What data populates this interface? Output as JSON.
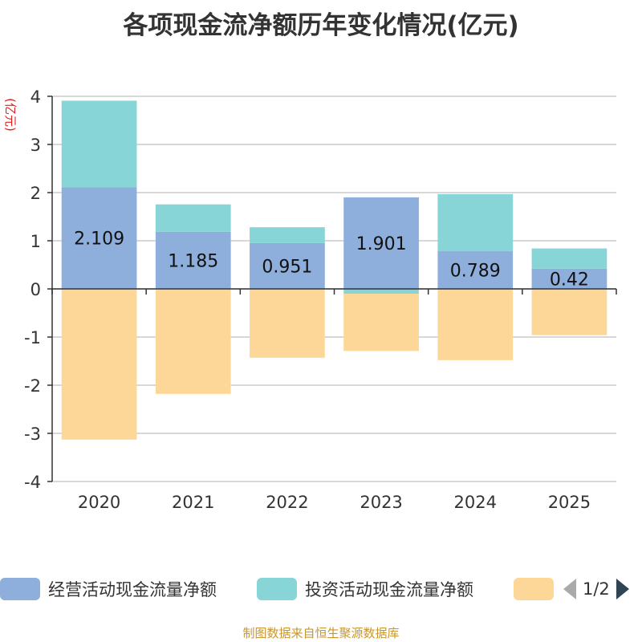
{
  "chart_data": {
    "type": "bar",
    "stacked": true,
    "title": "各项现金流净额历年变化情况(亿元)",
    "ylabel": "(亿元)",
    "ylim": [
      -4,
      4
    ],
    "yticks": [
      4,
      3,
      2,
      1,
      0,
      -1,
      -2,
      -3,
      -4
    ],
    "categories": [
      "2020",
      "2021",
      "2022",
      "2023",
      "2024",
      "2025"
    ],
    "series": [
      {
        "name": "经营活动现金流量净额",
        "color": "#8eaedb",
        "values": [
          2.109,
          1.185,
          0.951,
          1.901,
          0.789,
          0.42
        ],
        "show_labels": true
      },
      {
        "name": "投资活动现金流量净额",
        "color": "#88d5d8",
        "values": [
          1.8,
          0.57,
          0.33,
          -0.1,
          1.18,
          0.42
        ],
        "show_labels": false
      },
      {
        "name": "",
        "color": "#fdd797",
        "values": [
          -3.13,
          -2.18,
          -1.43,
          -1.19,
          -1.48,
          -0.96
        ],
        "show_labels": false
      }
    ],
    "grid": true,
    "legend_position": "bottom"
  },
  "legend": {
    "items": [
      {
        "label": "经营活动现金流量净额",
        "color": "#8eaedb"
      },
      {
        "label": "投资活动现金流量净额",
        "color": "#88d5d8"
      },
      {
        "label": "",
        "color": "#fdd797"
      }
    ],
    "page": "1/2"
  },
  "source_text": "制图数据来自恒生聚源数据库"
}
